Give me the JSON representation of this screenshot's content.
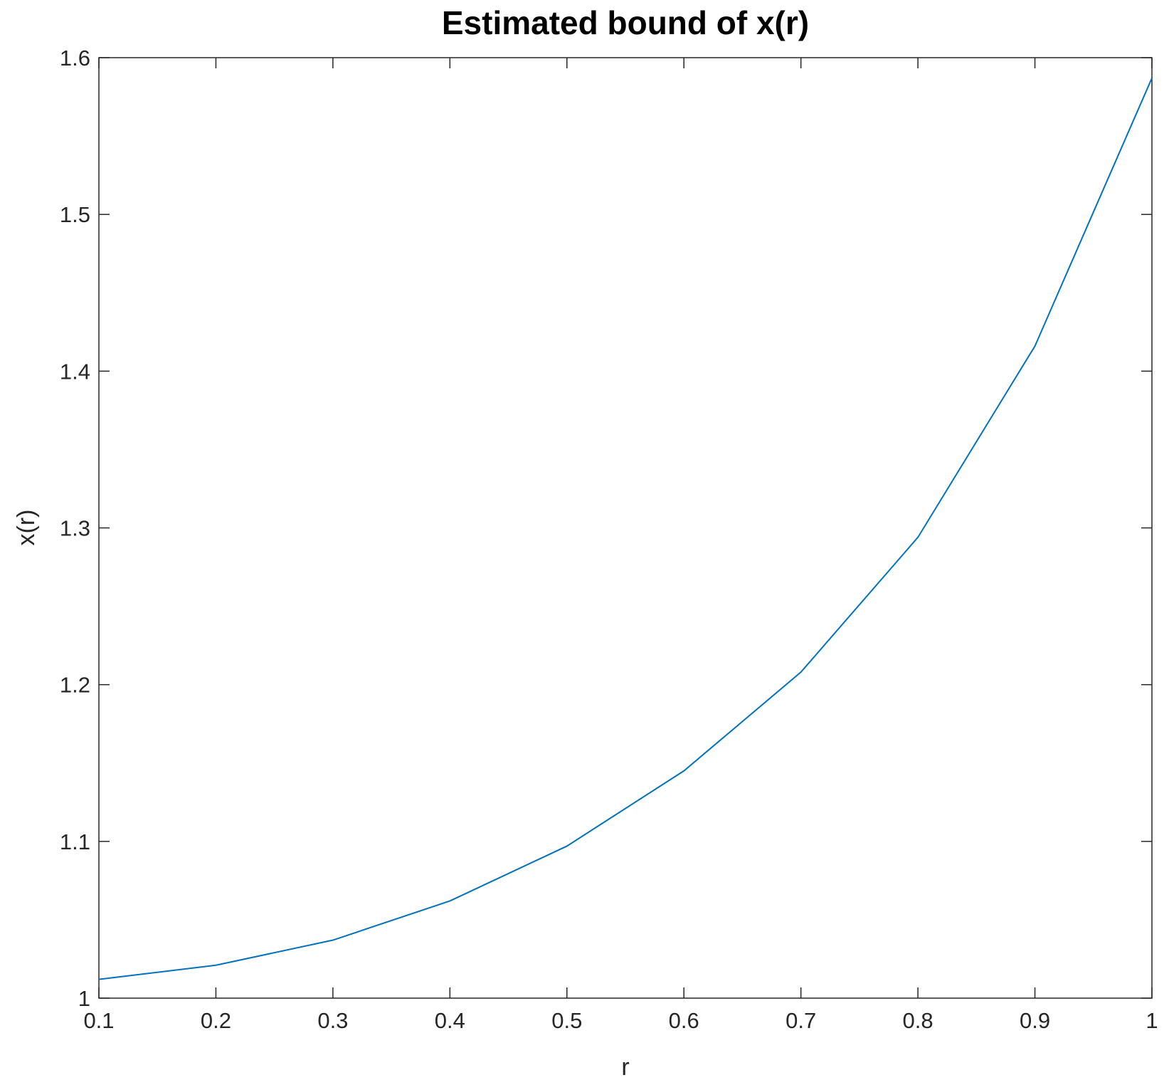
{
  "chart_data": {
    "type": "line",
    "title": "Estimated bound of x(r)",
    "x_label": "r",
    "y_label": "x(r)",
    "x": [
      0.1,
      0.2,
      0.3,
      0.4,
      0.5,
      0.6,
      0.7,
      0.8,
      0.9,
      1
    ],
    "series": [
      {
        "color": "#0072bd",
        "values": [
          1.012,
          1.021,
          1.037,
          1.062,
          1.097,
          1.145,
          1.208,
          1.294,
          1.416,
          1.587
        ]
      }
    ],
    "xlim": [
      0.1,
      1
    ],
    "ylim": [
      1,
      1.6
    ],
    "xticks": [
      0.1,
      0.2,
      0.3,
      0.4,
      0.5,
      0.6,
      0.7,
      0.8,
      0.9,
      1
    ],
    "yticks": [
      1,
      1.1,
      1.2,
      1.3,
      1.4,
      1.5,
      1.6
    ],
    "grid": false
  }
}
